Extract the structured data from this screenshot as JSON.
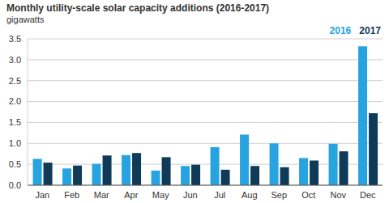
{
  "chart_data": {
    "type": "bar",
    "title": "Monthly utility-scale solar capacity additions (2016-2017)",
    "subtitle": "gigawatts",
    "categories": [
      "Jan",
      "Feb",
      "Mar",
      "Apr",
      "May",
      "Jun",
      "Jul",
      "Aug",
      "Sep",
      "Oct",
      "Nov",
      "Dec"
    ],
    "series": [
      {
        "name": "2016",
        "color": "#27a3e0",
        "values": [
          0.63,
          0.4,
          0.51,
          0.72,
          0.35,
          0.46,
          0.91,
          1.21,
          1.0,
          0.65,
          0.99,
          3.32
        ]
      },
      {
        "name": "2017",
        "color": "#0f3a58",
        "values": [
          0.54,
          0.47,
          0.71,
          0.77,
          0.67,
          0.49,
          0.37,
          0.46,
          0.43,
          0.59,
          0.81,
          1.72
        ]
      }
    ],
    "ylim": [
      0,
      3.5
    ],
    "yticks": [
      {
        "value": 0,
        "label": "0.0"
      },
      0.5,
      {
        "value": 1,
        "label": "1.0"
      },
      1.5,
      {
        "value": 2,
        "label": "2.0"
      },
      2.5,
      {
        "value": 3,
        "label": "3.0"
      },
      3.5
    ],
    "grid": true,
    "legend": "top-right"
  }
}
